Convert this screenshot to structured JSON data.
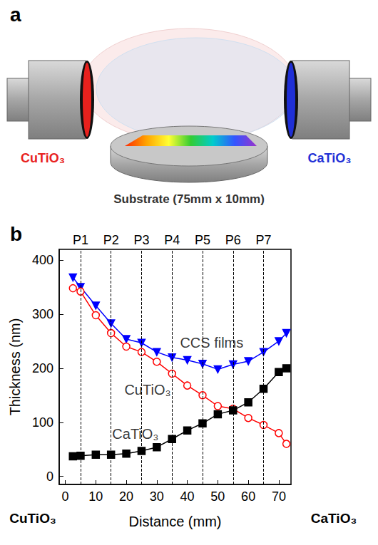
{
  "diagram": {
    "letter": "a",
    "left_target": "CuTiO₃",
    "right_target": "CaTiO₃",
    "substrate": "Substrate (75mm x 10mm)"
  },
  "chart_data": {
    "type": "line",
    "panel_letter": "b",
    "xlabel": "Distance (mm)",
    "ylabel": "Thickness (nm)",
    "x_end_labels": [
      "CuTiO₃",
      "CaTiO₃"
    ],
    "x": [
      2.5,
      5,
      10,
      15,
      20,
      25,
      30,
      35,
      40,
      45,
      50,
      55,
      60,
      65,
      70,
      72.5
    ],
    "series": [
      {
        "color": "#0000ff",
        "marker": "triangle_down",
        "values": [
          368,
          350,
          316,
          283,
          254,
          247,
          230,
          220,
          215,
          208,
          198,
          207,
          213,
          230,
          250,
          265
        ]
      },
      {
        "color": "#ff0000",
        "marker": "open_circle",
        "values": [
          348,
          342,
          298,
          265,
          240,
          230,
          212,
          190,
          168,
          150,
          130,
          125,
          108,
          95,
          80,
          60
        ]
      },
      {
        "color": "#000000",
        "marker": "square",
        "values": [
          37,
          38,
          40,
          40,
          42,
          47,
          54,
          69,
          85,
          98,
          115,
          122,
          137,
          162,
          193,
          200
        ]
      }
    ],
    "annotations": [
      {
        "text": "CCS films",
        "x": 48,
        "y": 247
      },
      {
        "text": "CuTiO₃",
        "x": 27,
        "y": 160
      },
      {
        "text": "CaTiO₃",
        "x": 23,
        "y": 79
      }
    ],
    "reference_lines": [
      {
        "label": "P1",
        "x": 5
      },
      {
        "label": "P2",
        "x": 15
      },
      {
        "label": "P3",
        "x": 25
      },
      {
        "label": "P4",
        "x": 35
      },
      {
        "label": "P5",
        "x": 45
      },
      {
        "label": "P6",
        "x": 55
      },
      {
        "label": "P7",
        "x": 65
      }
    ],
    "xlim": [
      -2,
      74
    ],
    "xticks": [
      0,
      10,
      20,
      30,
      40,
      50,
      60,
      70
    ],
    "ylim": [
      -15,
      420
    ],
    "yticks": [
      0,
      100,
      200,
      300,
      400
    ],
    "grid": false
  }
}
